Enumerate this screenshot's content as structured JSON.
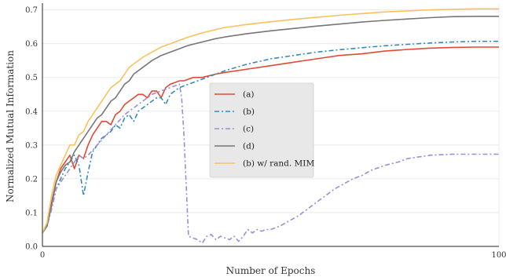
{
  "chart_data": {
    "type": "line",
    "xlabel": "Number of Epochs",
    "ylabel": "Normalized Mutual Information",
    "xlim": [
      0,
      100
    ],
    "ylim": [
      0.0,
      0.72
    ],
    "xticks": [
      "0",
      "100"
    ],
    "yticks": [
      "0.0",
      "0.1",
      "0.2",
      "0.3",
      "0.4",
      "0.5",
      "0.6",
      "0.7"
    ],
    "grid": true,
    "legend_position": "center",
    "series": [
      {
        "name": "(a)",
        "color": "#e24a33",
        "dash": "solid",
        "x": [
          0,
          1,
          2,
          3,
          4,
          5,
          6,
          7,
          8,
          9,
          9.5,
          10,
          11,
          12,
          13,
          14,
          15,
          16,
          17,
          18,
          19,
          20,
          21,
          22,
          23,
          24,
          25,
          26,
          27,
          28,
          29,
          30,
          31,
          32,
          33,
          35,
          38,
          40,
          45,
          50,
          55,
          60,
          65,
          70,
          75,
          80,
          85,
          90,
          95,
          100
        ],
        "y": [
          0.04,
          0.06,
          0.12,
          0.19,
          0.23,
          0.25,
          0.27,
          0.23,
          0.27,
          0.26,
          0.28,
          0.3,
          0.33,
          0.35,
          0.37,
          0.37,
          0.36,
          0.39,
          0.4,
          0.42,
          0.43,
          0.44,
          0.45,
          0.45,
          0.44,
          0.46,
          0.46,
          0.44,
          0.47,
          0.48,
          0.485,
          0.49,
          0.49,
          0.495,
          0.5,
          0.5,
          0.51,
          0.515,
          0.525,
          0.535,
          0.545,
          0.555,
          0.565,
          0.57,
          0.578,
          0.583,
          0.587,
          0.589,
          0.59,
          0.59
        ]
      },
      {
        "name": "(b)",
        "color": "#348abd",
        "dash": "6 3 2 3",
        "x": [
          0,
          1,
          2,
          3,
          4,
          5,
          6,
          7,
          8,
          9,
          10,
          11,
          12,
          13,
          14,
          15,
          16,
          17,
          18,
          19,
          20,
          21,
          22,
          23,
          24,
          25,
          26,
          27,
          28,
          29,
          30,
          32,
          35,
          38,
          40,
          45,
          50,
          55,
          60,
          65,
          70,
          75,
          80,
          85,
          90,
          95,
          100
        ],
        "y": [
          0.04,
          0.06,
          0.11,
          0.17,
          0.2,
          0.23,
          0.25,
          0.27,
          0.24,
          0.15,
          0.22,
          0.28,
          0.3,
          0.32,
          0.33,
          0.34,
          0.36,
          0.35,
          0.38,
          0.39,
          0.37,
          0.4,
          0.41,
          0.42,
          0.43,
          0.44,
          0.44,
          0.42,
          0.45,
          0.46,
          0.47,
          0.48,
          0.495,
          0.51,
          0.52,
          0.54,
          0.555,
          0.565,
          0.575,
          0.582,
          0.588,
          0.594,
          0.598,
          0.602,
          0.605,
          0.607,
          0.607
        ]
      },
      {
        "name": "(c)",
        "color": "#988ed5",
        "dash": "6 3 2 3",
        "x": [
          0,
          1,
          2,
          3,
          4,
          5,
          6,
          7,
          8,
          9,
          10,
          12,
          14,
          16,
          18,
          20,
          22,
          24,
          26,
          28,
          30,
          30.5,
          31,
          32,
          34,
          35,
          36,
          37,
          38,
          39,
          40,
          41,
          42,
          43,
          44,
          45,
          46,
          47,
          48,
          49,
          50,
          52,
          54,
          56,
          58,
          60,
          62,
          64,
          66,
          68,
          70,
          72,
          75,
          78,
          80,
          85,
          90,
          95,
          100
        ],
        "y": [
          0.04,
          0.06,
          0.11,
          0.17,
          0.19,
          0.21,
          0.23,
          0.25,
          0.27,
          0.26,
          0.27,
          0.3,
          0.33,
          0.36,
          0.39,
          0.41,
          0.43,
          0.45,
          0.46,
          0.47,
          0.48,
          0.44,
          0.33,
          0.03,
          0.02,
          0.01,
          0.03,
          0.035,
          0.02,
          0.03,
          0.025,
          0.02,
          0.03,
          0.015,
          0.03,
          0.05,
          0.04,
          0.05,
          0.045,
          0.05,
          0.05,
          0.06,
          0.075,
          0.09,
          0.11,
          0.13,
          0.15,
          0.17,
          0.185,
          0.2,
          0.21,
          0.225,
          0.24,
          0.25,
          0.26,
          0.27,
          0.273,
          0.273,
          0.273
        ]
      },
      {
        "name": "(d)",
        "color": "#777777",
        "dash": "solid",
        "x": [
          0,
          1,
          2,
          3,
          4,
          5,
          6,
          7,
          8,
          9,
          10,
          11,
          12,
          13,
          14,
          15,
          16,
          17,
          18,
          19,
          20,
          22,
          24,
          26,
          28,
          30,
          32,
          35,
          38,
          40,
          45,
          50,
          55,
          60,
          65,
          70,
          75,
          80,
          85,
          90,
          95,
          100
        ],
        "y": [
          0.04,
          0.06,
          0.13,
          0.19,
          0.22,
          0.24,
          0.25,
          0.28,
          0.3,
          0.32,
          0.34,
          0.36,
          0.38,
          0.39,
          0.41,
          0.43,
          0.44,
          0.46,
          0.48,
          0.49,
          0.51,
          0.53,
          0.55,
          0.565,
          0.575,
          0.585,
          0.595,
          0.605,
          0.615,
          0.62,
          0.63,
          0.638,
          0.645,
          0.652,
          0.658,
          0.664,
          0.669,
          0.673,
          0.677,
          0.68,
          0.681,
          0.681
        ]
      },
      {
        "name": "(b) w/ rand. MIM",
        "color": "#fbc15e",
        "dash": "solid",
        "x": [
          0,
          1,
          2,
          3,
          4,
          5,
          6,
          7,
          8,
          9,
          10,
          11,
          12,
          13,
          14,
          15,
          16,
          17,
          18,
          19,
          20,
          22,
          24,
          26,
          28,
          30,
          32,
          35,
          38,
          40,
          45,
          50,
          55,
          60,
          65,
          70,
          75,
          80,
          85,
          90,
          95,
          100
        ],
        "y": [
          0.04,
          0.07,
          0.15,
          0.21,
          0.24,
          0.27,
          0.3,
          0.3,
          0.33,
          0.34,
          0.37,
          0.39,
          0.41,
          0.43,
          0.45,
          0.47,
          0.48,
          0.49,
          0.51,
          0.53,
          0.54,
          0.56,
          0.575,
          0.59,
          0.6,
          0.61,
          0.62,
          0.632,
          0.642,
          0.648,
          0.657,
          0.665,
          0.672,
          0.678,
          0.684,
          0.689,
          0.694,
          0.697,
          0.7,
          0.702,
          0.703,
          0.703
        ]
      }
    ]
  }
}
